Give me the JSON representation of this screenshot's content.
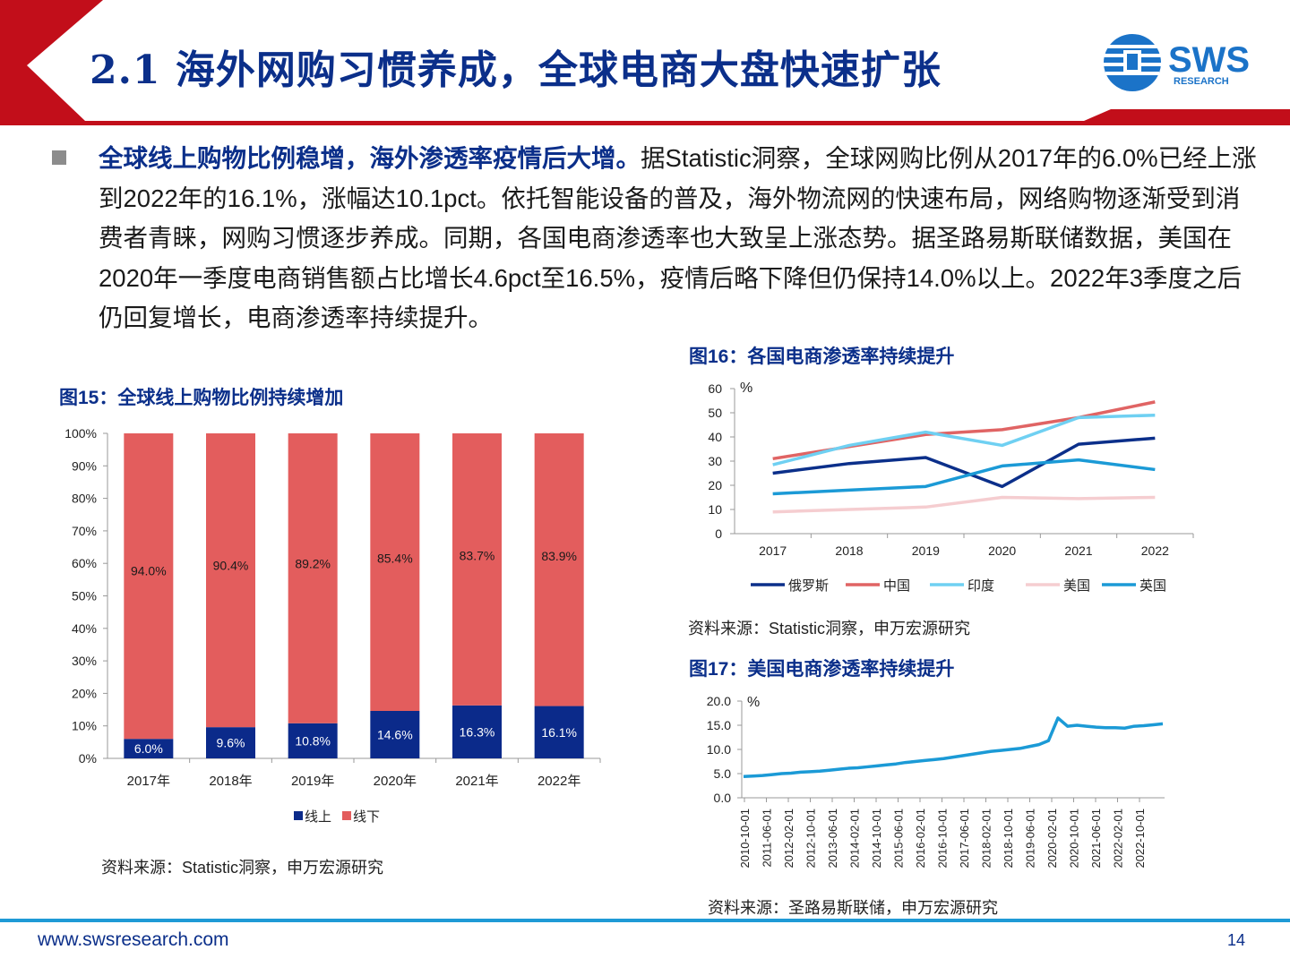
{
  "header": {
    "title": "2.1 海外网购习惯养成，全球电商大盘快速扩张",
    "logo_text": "SWS",
    "logo_subtext": "RESEARCH"
  },
  "body": {
    "bold_lead": "全球线上购物比例稳增，海外渗透率疫情后大增。",
    "text": "据Statistic洞察，全球网购比例从2017年的6.0%已经上涨到2022年的16.1%，涨幅达10.1pct。依托智能设备的普及，海外物流网的快速布局，网络购物逐渐受到消费者青睐，网购习惯逐步养成。同期，各国电商渗透率也大致呈上涨态势。据圣路易斯联储数据，美国在2020年一季度电商销售额占比增长4.6pct至16.5%，疫情后略下降但仍保持14.0%以上。2022年3季度之后仍回复增长，电商渗透率持续提升。"
  },
  "figures": {
    "fig15_title": "图15：全球线上购物比例持续增加",
    "fig15_source": "资料来源：Statistic洞察，申万宏源研究",
    "fig16_title": "图16：各国电商渗透率持续提升",
    "fig16_source": "资料来源：Statistic洞察，申万宏源研究",
    "fig17_title": "图17：美国电商渗透率持续提升",
    "fig17_source": "资料来源：圣路易斯联储，申万宏源研究"
  },
  "footer": {
    "url": "www.swsresearch.com",
    "page": "14"
  },
  "chart_data": [
    {
      "id": "fig15",
      "type": "bar",
      "stacked": true,
      "categories": [
        "2017年",
        "2018年",
        "2019年",
        "2020年",
        "2021年",
        "2022年"
      ],
      "series": [
        {
          "name": "线上",
          "values": [
            6.0,
            9.6,
            10.8,
            14.6,
            16.3,
            16.1
          ],
          "labels": [
            "6.0%",
            "9.6%",
            "10.8%",
            "14.6%",
            "16.3%",
            "16.1%"
          ],
          "color": "#0b2a8a"
        },
        {
          "name": "线下",
          "values": [
            94.0,
            90.4,
            89.2,
            85.4,
            83.7,
            83.9
          ],
          "labels": [
            "94.0%",
            "90.4%",
            "89.2%",
            "85.4%",
            "83.7%",
            "83.9%"
          ],
          "color": "#e35d5d"
        }
      ],
      "yticks": [
        "0%",
        "10%",
        "20%",
        "30%",
        "40%",
        "50%",
        "60%",
        "70%",
        "80%",
        "90%",
        "100%"
      ],
      "ylim": [
        0,
        100
      ],
      "legend": "bottom"
    },
    {
      "id": "fig16",
      "type": "line",
      "x": [
        "2017",
        "2018",
        "2019",
        "2020",
        "2021",
        "2022"
      ],
      "ylabel": "%",
      "ylim": [
        0,
        60
      ],
      "yticks": [
        "0",
        "10",
        "20",
        "30",
        "40",
        "50",
        "60"
      ],
      "series": [
        {
          "name": "俄罗斯",
          "values": [
            25,
            29,
            31.5,
            19.5,
            37,
            39.5
          ],
          "color": "#0b2f8a"
        },
        {
          "name": "中国",
          "values": [
            31,
            36,
            41,
            43,
            48,
            54.5
          ],
          "color": "#e06464"
        },
        {
          "name": "印度",
          "values": [
            28.5,
            36.5,
            42,
            36.5,
            48,
            49
          ],
          "color": "#6fd0f2"
        },
        {
          "name": "美国",
          "values": [
            9,
            10,
            11,
            15,
            14.5,
            15
          ],
          "color": "#f5cdd0"
        },
        {
          "name": "英国",
          "values": [
            16.5,
            18,
            19.5,
            28,
            30.5,
            26.5
          ],
          "color": "#1b9ad6"
        }
      ],
      "legend": "bottom"
    },
    {
      "id": "fig17",
      "type": "line",
      "ylabel": "%",
      "ylim": [
        0,
        20
      ],
      "yticks": [
        "0.0",
        "5.0",
        "10.0",
        "15.0",
        "20.0"
      ],
      "xtick_labels": [
        "2010-10-01",
        "2011-06-01",
        "2012-02-01",
        "2012-10-01",
        "2013-06-01",
        "2014-02-01",
        "2014-10-01",
        "2015-06-01",
        "2016-02-01",
        "2016-10-01",
        "2017-06-01",
        "2018-02-01",
        "2018-10-01",
        "2019-06-01",
        "2020-02-01",
        "2020-10-01",
        "2021-06-01",
        "2022-02-01",
        "2022-10-01"
      ],
      "series": [
        {
          "name": "美国",
          "color": "#1b9ad6",
          "values": [
            4.4,
            4.5,
            4.6,
            4.8,
            5.0,
            5.1,
            5.3,
            5.4,
            5.5,
            5.7,
            5.9,
            6.1,
            6.2,
            6.4,
            6.6,
            6.8,
            7.0,
            7.3,
            7.5,
            7.7,
            7.9,
            8.1,
            8.4,
            8.7,
            9.0,
            9.3,
            9.6,
            9.8,
            10.0,
            10.2,
            10.6,
            11.0,
            11.8,
            16.5,
            14.8,
            15.0,
            14.8,
            14.6,
            14.5,
            14.5,
            14.4,
            14.8,
            14.9,
            15.1,
            15.3
          ]
        }
      ]
    }
  ]
}
